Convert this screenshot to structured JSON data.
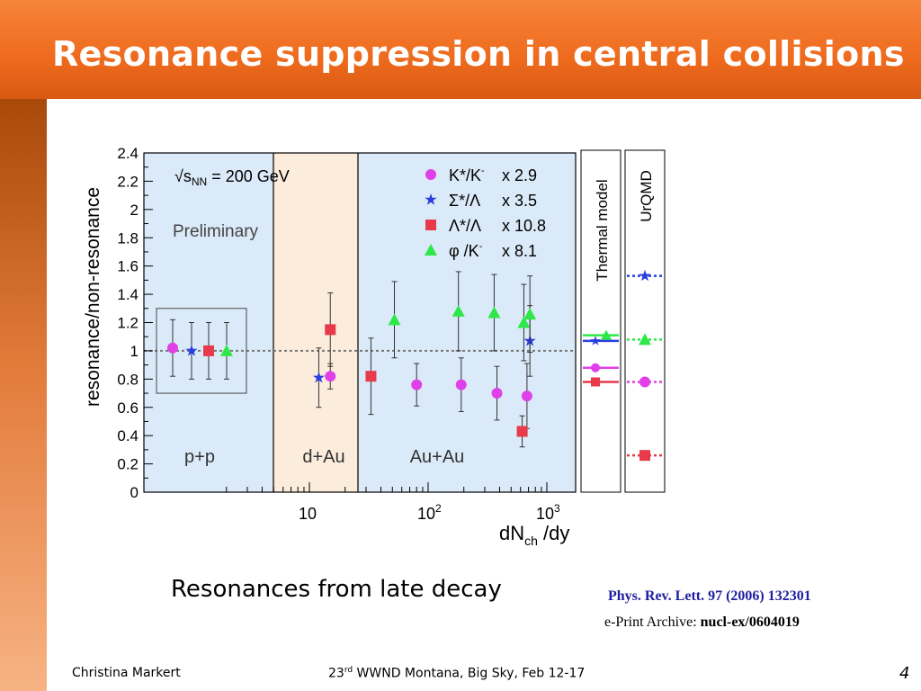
{
  "slide": {
    "title": "Resonance suppression in central collisions",
    "caption": "Resonances from late decay",
    "reference_journal": "Phys. Rev. Lett. 97 (2006) 132301",
    "reference_eprint_prefix": "e-Print Archive: ",
    "reference_eprint_id": "nucl-ex/0604019",
    "footer_author": "Christina Markert",
    "footer_conf_num": "23",
    "footer_conf_sup": "rd",
    "footer_conf_rest": " WWND Montana, Big Sky, Feb  12-17",
    "page_number": "4"
  },
  "colors": {
    "header": "#ee6a1d",
    "pp_region": "#dbeaf8",
    "dau_region": "#fcecdc",
    "auau_region": "#dbeaf8",
    "kstar": "#e040e8",
    "sigma": "#2a3ee0",
    "lambda": "#e83a4a",
    "phi": "#2ee84a",
    "reference_line": "#777777"
  },
  "chart_data": {
    "type": "scatter",
    "xlabel_main": "dN",
    "xlabel_sub": "ch",
    "xlabel_tail": " /dy",
    "ylabel": "resonance/non-resonance",
    "x_scale": "log",
    "ylim": [
      0,
      2.4
    ],
    "yticks": [
      "0",
      "0.2",
      "0.4",
      "0.6",
      "0.8",
      "1",
      "1.2",
      "1.4",
      "1.6",
      "1.8",
      "2",
      "2.2",
      "2.4"
    ],
    "xticks": [
      {
        "value": 10,
        "label": "10",
        "exp": ""
      },
      {
        "value": 100,
        "label": "10",
        "exp": "2"
      },
      {
        "value": 1000,
        "label": "10",
        "exp": "3"
      }
    ],
    "energy_label": "s",
    "energy_sub": "NN",
    "energy_value": " = 200 GeV",
    "preliminary": "Preliminary",
    "region_labels": [
      "p+p",
      "d+Au",
      "Au+Au"
    ],
    "reference_y": 1.0,
    "legend": [
      {
        "key": "kstar",
        "label": "K*/K",
        "sup": "-",
        "scale": "x 2.9"
      },
      {
        "key": "sigma",
        "label": "Σ*/Λ",
        "sup": "",
        "scale": "x 3.5"
      },
      {
        "key": "lambda",
        "label": "Λ*/Λ",
        "sup": "",
        "scale": "x 10.8"
      },
      {
        "key": "phi",
        "label": "φ /K",
        "sup": "-",
        "scale": "x 8.1"
      }
    ],
    "series": [
      {
        "key": "kstar",
        "marker": "circle",
        "points": [
          {
            "region": "pp",
            "y": 1.02
          },
          {
            "x": 15,
            "y": 0.82,
            "err": 0.09
          },
          {
            "x": 80,
            "y": 0.76,
            "err": 0.15
          },
          {
            "x": 190,
            "y": 0.76,
            "err": 0.19
          },
          {
            "x": 380,
            "y": 0.7,
            "err": 0.19
          },
          {
            "x": 680,
            "y": 0.68,
            "err": 0.23
          }
        ]
      },
      {
        "key": "sigma",
        "marker": "star",
        "points": [
          {
            "region": "pp",
            "y": 1.0
          },
          {
            "x": 12,
            "y": 0.81,
            "err": 0.21
          },
          {
            "x": 720,
            "y": 1.07,
            "err": 0.25
          }
        ]
      },
      {
        "key": "lambda",
        "marker": "square",
        "points": [
          {
            "region": "pp",
            "y": 1.0
          },
          {
            "x": 15,
            "y": 1.15,
            "err": 0.26
          },
          {
            "x": 33,
            "y": 0.82,
            "err": 0.27
          },
          {
            "x": 620,
            "y": 0.43,
            "err": 0.11
          }
        ]
      },
      {
        "key": "phi",
        "marker": "triangle",
        "points": [
          {
            "region": "pp",
            "y": 1.0
          },
          {
            "x": 52,
            "y": 1.22,
            "err": 0.27
          },
          {
            "x": 180,
            "y": 1.28,
            "err": 0.28
          },
          {
            "x": 360,
            "y": 1.27,
            "err": 0.27
          },
          {
            "x": 640,
            "y": 1.2,
            "err": 0.27
          },
          {
            "x": 720,
            "y": 1.26,
            "err": 0.27
          }
        ]
      }
    ],
    "models": [
      {
        "name": "Thermal model",
        "values": {
          "kstar": 0.88,
          "sigma": 1.07,
          "lambda": 0.78,
          "phi": 1.11
        }
      },
      {
        "name": "UrQMD",
        "values": {
          "kstar": 0.78,
          "sigma": 1.53,
          "lambda": 0.26,
          "phi": 1.08
        }
      }
    ]
  }
}
